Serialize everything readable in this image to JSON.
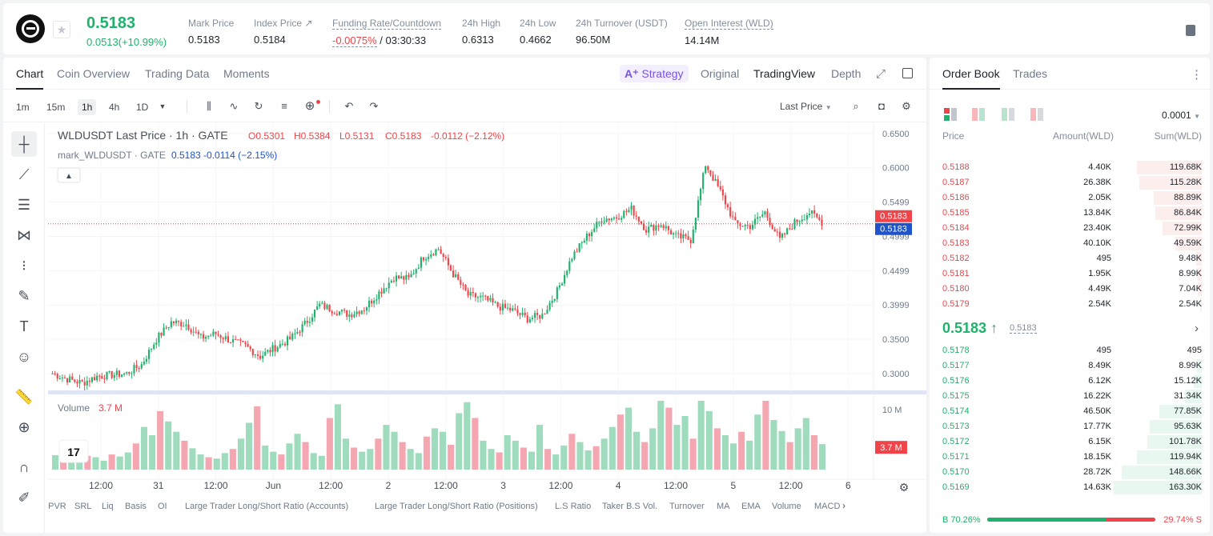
{
  "header": {
    "price": "0.5183",
    "change": "0.0513(+10.99%)",
    "stats": [
      {
        "label": "Mark Price",
        "value": "0.5183"
      },
      {
        "label": "Index Price ↗",
        "value": "0.5184"
      },
      {
        "label": "Funding Rate/Countdown",
        "value": "-0.0075%",
        "value2": "/ 03:30:33"
      },
      {
        "label": "24h High",
        "value": "0.6313"
      },
      {
        "label": "24h Low",
        "value": "0.4662"
      },
      {
        "label": "24h Turnover (USDT)",
        "value": "96.50M"
      },
      {
        "label": "Open Interest (WLD)",
        "value": "14.14M"
      }
    ]
  },
  "chart_tabs": {
    "left": [
      "Chart",
      "Coin Overview",
      "Trading Data",
      "Moments"
    ],
    "strategy": "Strategy",
    "right": [
      "Original",
      "TradingView",
      "Depth"
    ]
  },
  "timeframes": [
    "1m",
    "15m",
    "1h",
    "4h",
    "1D"
  ],
  "price_type": "Last Price",
  "legend": {
    "symbol": "WLDUSDT Last Price · 1h · GATE",
    "o": "O0.5301",
    "h": "H0.5384",
    "l": "L0.5131",
    "c": "C0.5183",
    "chg": "-0.0112 (−2.12%)",
    "mark_name": "mark_WLDUSDT · GATE",
    "mark_vals": "0.5183  -0.0114 (−2.15%)"
  },
  "volume_legend": {
    "label": "Volume",
    "value": "3.7 M"
  },
  "price_badges": {
    "last": "0.5183",
    "mark": "0.5183"
  },
  "vol_badge": "3.7 M",
  "vol_axis": "10 M",
  "chart_data": {
    "type": "candlestick",
    "y_ticks": [
      "0.6500",
      "0.6000",
      "0.5499",
      "0.4999",
      "0.4499",
      "0.3999",
      "0.3500",
      "0.3000"
    ],
    "ylim": [
      0.28,
      0.665
    ],
    "x_ticks": [
      "12:00",
      "31",
      "12:00",
      "Jun",
      "12:00",
      "2",
      "12:00",
      "3",
      "12:00",
      "4",
      "12:00",
      "5",
      "12:00",
      "6"
    ],
    "close_path": [
      0.3,
      0.292,
      0.286,
      0.296,
      0.298,
      0.3,
      0.313,
      0.35,
      0.375,
      0.372,
      0.352,
      0.358,
      0.348,
      0.34,
      0.325,
      0.338,
      0.35,
      0.372,
      0.4,
      0.392,
      0.386,
      0.395,
      0.418,
      0.44,
      0.438,
      0.47,
      0.482,
      0.445,
      0.414,
      0.41,
      0.398,
      0.392,
      0.38,
      0.385,
      0.42,
      0.47,
      0.5,
      0.525,
      0.528,
      0.54,
      0.51,
      0.518,
      0.5,
      0.495,
      0.605,
      0.565,
      0.518,
      0.515,
      0.535,
      0.495,
      0.52,
      0.535,
      0.518
    ],
    "volumes_millions": [
      2.1,
      1.5,
      1.2,
      1.6,
      2.0,
      1.8,
      1.3,
      2.2,
      1.9,
      2.5,
      3.8,
      6.2,
      5.0,
      8.5,
      7.0,
      5.5,
      4.2,
      3.1,
      2.2,
      1.8,
      1.6,
      2.4,
      3.0,
      4.5,
      6.8,
      9.2,
      3.5,
      2.6,
      2.2,
      3.8,
      5.2,
      4.0,
      2.4,
      2.0,
      7.5,
      9.5,
      4.5,
      3.2,
      2.6,
      3.0,
      4.5,
      6.5,
      5.5,
      4.0,
      3.0,
      2.4,
      4.8,
      6.0,
      5.5,
      3.6,
      8.2,
      9.8,
      7.5,
      4.2,
      3.0,
      2.5,
      5.0,
      4.2,
      3.2,
      2.6,
      6.5,
      3.0,
      2.2,
      3.5,
      5.2,
      4.0,
      2.8,
      3.4,
      4.5,
      6.2,
      8.0,
      9.0,
      5.5,
      4.0,
      6.0,
      10.0,
      9.0,
      6.5,
      7.8,
      4.5,
      10.0,
      8.5,
      6.0,
      5.0,
      3.8,
      5.5,
      4.2,
      8.0,
      10.0,
      7.2,
      5.6,
      4.0,
      6.0,
      7.5,
      5.0,
      3.7
    ]
  },
  "bottom_tabs": [
    "LPVR",
    "SRL",
    "Liq",
    "Basis",
    "OI",
    "Large Trader Long/Short Ratio (Accounts)",
    "Large Trader Long/Short Ratio (Positions)",
    "L.S Ratio",
    "Taker B.S Vol.",
    "Turnover",
    "MA",
    "EMA",
    "Volume",
    "MACD"
  ],
  "orderbook": {
    "tabs": [
      "Order Book",
      "Trades"
    ],
    "precision": "0.0001",
    "cols": [
      "Price",
      "Amount(WLD)",
      "Sum(WLD)"
    ],
    "asks": [
      {
        "price": "0.5188",
        "amount": "4.40K",
        "sum": "119.68K",
        "depth": 0.74
      },
      {
        "price": "0.5187",
        "amount": "26.38K",
        "sum": "115.28K",
        "depth": 0.71
      },
      {
        "price": "0.5186",
        "amount": "2.05K",
        "sum": "88.89K",
        "depth": 0.55
      },
      {
        "price": "0.5185",
        "amount": "13.84K",
        "sum": "86.84K",
        "depth": 0.53
      },
      {
        "price": "0.5184",
        "amount": "23.40K",
        "sum": "72.99K",
        "depth": 0.45
      },
      {
        "price": "0.5183",
        "amount": "40.10K",
        "sum": "49.59K",
        "depth": 0.3
      },
      {
        "price": "0.5182",
        "amount": "495",
        "sum": "9.48K",
        "depth": 0.06
      },
      {
        "price": "0.5181",
        "amount": "1.95K",
        "sum": "8.99K",
        "depth": 0.055
      },
      {
        "price": "0.5180",
        "amount": "4.49K",
        "sum": "7.04K",
        "depth": 0.045
      },
      {
        "price": "0.5179",
        "amount": "2.54K",
        "sum": "2.54K",
        "depth": 0.016
      }
    ],
    "last_price": "0.5183 ↑",
    "mark_price": "0.5183",
    "bids": [
      {
        "price": "0.5178",
        "amount": "495",
        "sum": "495",
        "depth": 0.003
      },
      {
        "price": "0.5177",
        "amount": "8.49K",
        "sum": "8.99K",
        "depth": 0.055
      },
      {
        "price": "0.5176",
        "amount": "6.12K",
        "sum": "15.12K",
        "depth": 0.09
      },
      {
        "price": "0.5175",
        "amount": "16.22K",
        "sum": "31.34K",
        "depth": 0.19
      },
      {
        "price": "0.5174",
        "amount": "46.50K",
        "sum": "77.85K",
        "depth": 0.48
      },
      {
        "price": "0.5173",
        "amount": "17.77K",
        "sum": "95.63K",
        "depth": 0.59
      },
      {
        "price": "0.5172",
        "amount": "6.15K",
        "sum": "101.78K",
        "depth": 0.62
      },
      {
        "price": "0.5171",
        "amount": "18.15K",
        "sum": "119.94K",
        "depth": 0.74
      },
      {
        "price": "0.5170",
        "amount": "28.72K",
        "sum": "148.66K",
        "depth": 0.91
      },
      {
        "price": "0.5169",
        "amount": "14.63K",
        "sum": "163.30K",
        "depth": 1.0
      }
    ],
    "buy_ratio": "B 70.26%",
    "sell_ratio": "29.74% S",
    "buy_fraction": 0.7026
  },
  "colors": {
    "up": "#20b26c",
    "down": "#ef454a",
    "mark": "#1e53c9"
  }
}
